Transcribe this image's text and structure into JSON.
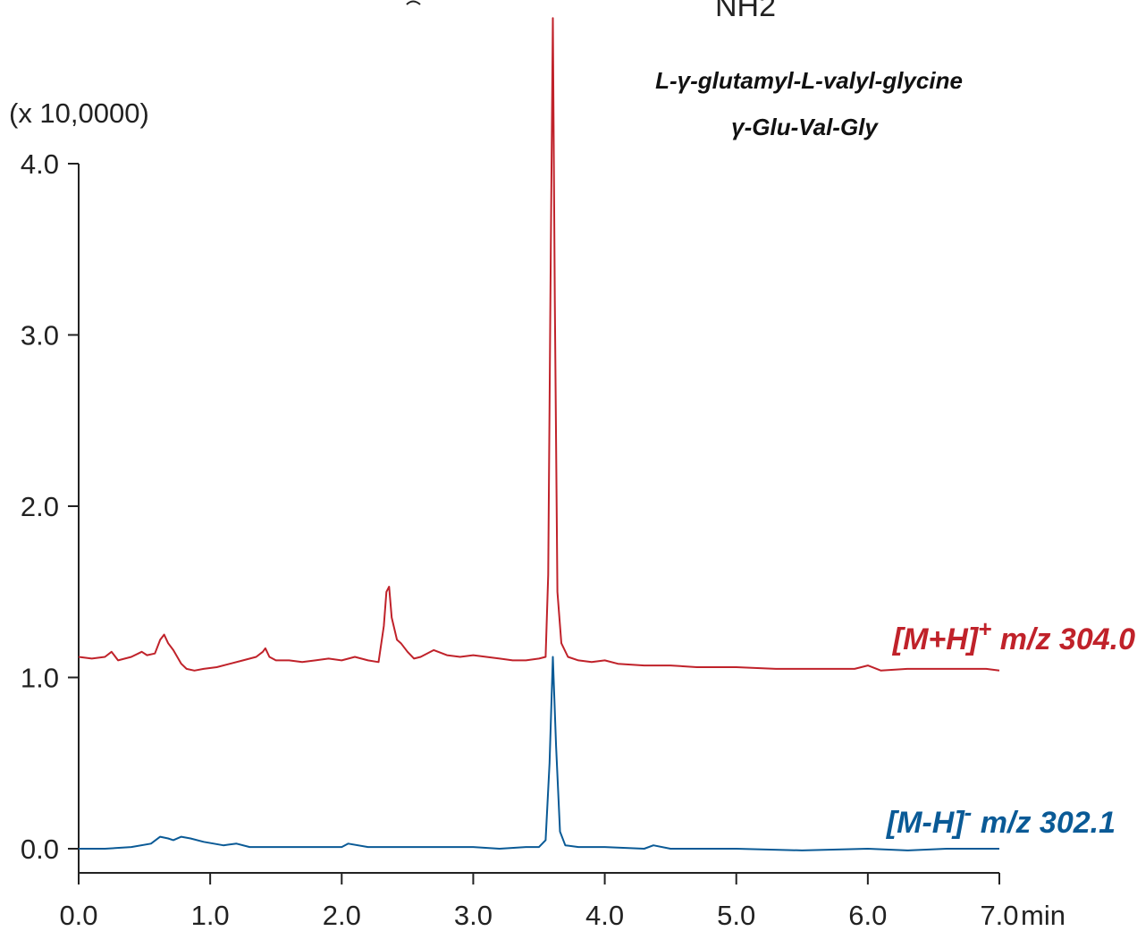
{
  "chart_data": {
    "type": "line",
    "title": "",
    "xlabel": "",
    "ylabel": "",
    "x_unit": "min",
    "y_unit": "(x 10,0000)",
    "xlim": [
      0,
      7
    ],
    "ylim": [
      -0.1,
      4.35
    ],
    "x_ticks": [
      "0.0",
      "1.0",
      "2.0",
      "3.0",
      "4.0",
      "5.0",
      "6.0",
      "7.0"
    ],
    "y_ticks": [
      "0.0",
      "1.0",
      "2.0",
      "3.0",
      "4.0"
    ],
    "grid": false,
    "compound_name": "L-γ-glutamyl-L-valyl-glycine",
    "compound_abbrev": "γ-Glu-Val-Gly",
    "structure_fragment": "NH2",
    "series": [
      {
        "name": "[M+H]+ m/z 304.0",
        "label_main": "[M+H]",
        "label_sup": "+",
        "label_mz": "m/z 304.0",
        "color": "#c0222a",
        "x": [
          0.0,
          0.1,
          0.2,
          0.25,
          0.3,
          0.4,
          0.48,
          0.52,
          0.58,
          0.62,
          0.65,
          0.68,
          0.72,
          0.78,
          0.82,
          0.88,
          0.95,
          1.05,
          1.15,
          1.25,
          1.35,
          1.4,
          1.42,
          1.45,
          1.5,
          1.6,
          1.7,
          1.8,
          1.9,
          2.0,
          2.1,
          2.2,
          2.28,
          2.32,
          2.34,
          2.36,
          2.38,
          2.42,
          2.45,
          2.5,
          2.55,
          2.6,
          2.7,
          2.8,
          2.9,
          3.0,
          3.1,
          3.2,
          3.3,
          3.4,
          3.5,
          3.55,
          3.57,
          3.59,
          3.605,
          3.62,
          3.64,
          3.67,
          3.72,
          3.8,
          3.9,
          4.0,
          4.1,
          4.3,
          4.5,
          4.7,
          5.0,
          5.3,
          5.6,
          5.9,
          6.0,
          6.1,
          6.3,
          6.5,
          6.7,
          6.9,
          7.0
        ],
        "y": [
          1.12,
          1.11,
          1.12,
          1.15,
          1.1,
          1.12,
          1.15,
          1.13,
          1.14,
          1.22,
          1.25,
          1.2,
          1.16,
          1.08,
          1.05,
          1.04,
          1.05,
          1.06,
          1.08,
          1.1,
          1.12,
          1.15,
          1.17,
          1.12,
          1.1,
          1.1,
          1.09,
          1.1,
          1.11,
          1.1,
          1.12,
          1.1,
          1.09,
          1.3,
          1.5,
          1.53,
          1.35,
          1.22,
          1.2,
          1.15,
          1.11,
          1.12,
          1.16,
          1.13,
          1.12,
          1.13,
          1.12,
          1.11,
          1.1,
          1.1,
          1.11,
          1.12,
          1.6,
          3.5,
          4.85,
          3.2,
          1.5,
          1.2,
          1.12,
          1.1,
          1.09,
          1.1,
          1.08,
          1.07,
          1.07,
          1.06,
          1.06,
          1.05,
          1.05,
          1.05,
          1.07,
          1.04,
          1.05,
          1.05,
          1.05,
          1.05,
          1.04
        ]
      },
      {
        "name": "[M-H]- m/z 302.1",
        "label_main": "[M-H]",
        "label_sup": "-",
        "label_mz": "m/z 302.1",
        "color": "#0a5a96",
        "x": [
          0.0,
          0.2,
          0.4,
          0.55,
          0.62,
          0.68,
          0.72,
          0.78,
          0.85,
          0.95,
          1.1,
          1.2,
          1.3,
          1.5,
          1.8,
          2.0,
          2.05,
          2.2,
          2.5,
          2.8,
          3.0,
          3.2,
          3.4,
          3.5,
          3.55,
          3.58,
          3.605,
          3.63,
          3.66,
          3.7,
          3.8,
          4.0,
          4.3,
          4.37,
          4.5,
          5.0,
          5.5,
          6.0,
          6.3,
          6.6,
          7.0
        ],
        "y": [
          0.0,
          0.0,
          0.01,
          0.03,
          0.07,
          0.06,
          0.05,
          0.07,
          0.06,
          0.04,
          0.02,
          0.03,
          0.01,
          0.01,
          0.01,
          0.01,
          0.03,
          0.01,
          0.01,
          0.01,
          0.01,
          0.0,
          0.01,
          0.01,
          0.05,
          0.5,
          1.12,
          0.6,
          0.1,
          0.02,
          0.01,
          0.01,
          0.0,
          0.02,
          0.0,
          0.0,
          -0.01,
          0.0,
          -0.01,
          0.0,
          0.0
        ]
      }
    ]
  }
}
